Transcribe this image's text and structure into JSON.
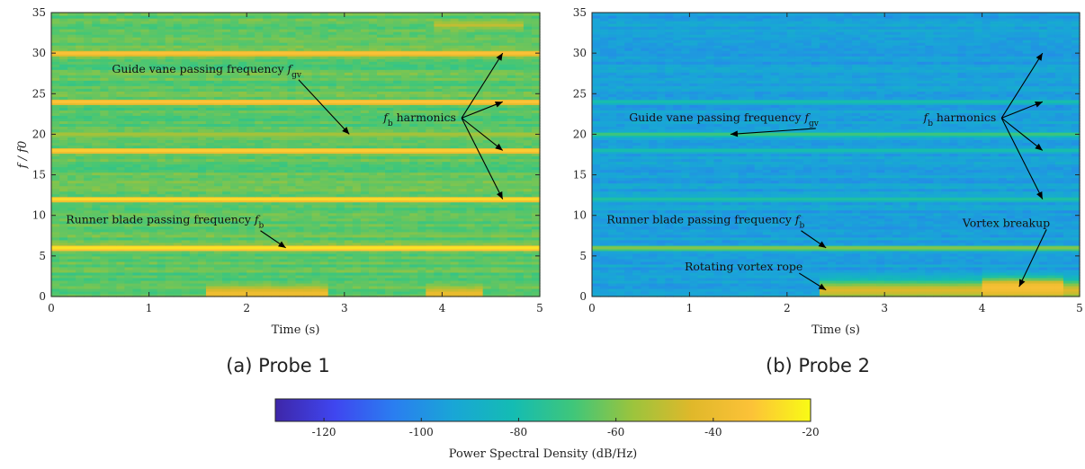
{
  "chart_data": [
    {
      "type": "heatmap",
      "id": "probe1",
      "caption": "(a) Probe 1",
      "xlabel": "Time (s)",
      "ylabel": "f / f0",
      "xlim": [
        0,
        5
      ],
      "ylim": [
        0,
        35
      ],
      "xticks": [
        0,
        1,
        2,
        3,
        4,
        5
      ],
      "yticks": [
        0,
        5,
        10,
        15,
        20,
        25,
        30,
        35
      ],
      "background_level_db": -65,
      "bands": [
        {
          "f": 0.4,
          "db": -38,
          "width": 0.8,
          "t_from": 1.6,
          "t_to": 2.8
        },
        {
          "f": 0.4,
          "db": -40,
          "width": 0.7,
          "t_from": 3.8,
          "t_to": 4.4
        },
        {
          "f": 6,
          "db": -25,
          "width": 0.35
        },
        {
          "f": 12,
          "db": -27,
          "width": 0.3
        },
        {
          "f": 18,
          "db": -30,
          "width": 0.3
        },
        {
          "f": 24,
          "db": -32,
          "width": 0.3
        },
        {
          "f": 30,
          "db": -33,
          "width": 0.3
        },
        {
          "f": 20,
          "db": -55,
          "width": 0.2
        },
        {
          "f": 33.5,
          "db": -50,
          "width": 0.4,
          "t_from": 3.9,
          "t_to": 4.8
        }
      ],
      "annotations": [
        {
          "text": "Guide vane passing frequency",
          "sym": "f",
          "sub": "gv",
          "x": 0.62,
          "y": 27.6,
          "to": [
            [
              3.05,
              20
            ]
          ]
        },
        {
          "text": "harmonics",
          "sym": "f",
          "sub": "b",
          "prefix": true,
          "x": 3.4,
          "y": 21.6,
          "from": [
            4.2,
            22
          ],
          "to": [
            [
              4.62,
              30
            ],
            [
              4.62,
              24
            ],
            [
              4.62,
              18
            ],
            [
              4.62,
              12
            ]
          ]
        },
        {
          "text": "Runner blade passing frequency",
          "sym": "f",
          "sub": "b",
          "x": 0.15,
          "y": 9.0,
          "to": [
            [
              2.4,
              6
            ]
          ]
        }
      ]
    },
    {
      "type": "heatmap",
      "id": "probe2",
      "caption": "(b) Probe 2",
      "xlabel": "Time (s)",
      "ylabel": "",
      "xlim": [
        0,
        5
      ],
      "ylim": [
        0,
        35
      ],
      "xticks": [
        0,
        1,
        2,
        3,
        4,
        5
      ],
      "yticks": [
        0,
        5,
        10,
        15,
        20,
        25,
        30,
        35
      ],
      "background_level_db": -95,
      "bands": [
        {
          "f": 0.8,
          "db": -45,
          "width": 1.2,
          "t_from": 2.3,
          "t_to": 5.0
        },
        {
          "f": 1.2,
          "db": -35,
          "width": 1.0,
          "t_from": 4.0,
          "t_to": 4.8
        },
        {
          "f": 6,
          "db": -60,
          "width": 0.3
        },
        {
          "f": 12,
          "db": -78,
          "width": 0.2
        },
        {
          "f": 18,
          "db": -80,
          "width": 0.2
        },
        {
          "f": 20,
          "db": -70,
          "width": 0.2
        },
        {
          "f": 24,
          "db": -80,
          "width": 0.2
        }
      ],
      "annotations": [
        {
          "text": "Guide vane passing frequency",
          "sym": "f",
          "sub": "gv",
          "x": 0.38,
          "y": 21.6,
          "to": [
            [
              1.42,
              20
            ]
          ]
        },
        {
          "text": "harmonics",
          "sym": "f",
          "sub": "b",
          "prefix": true,
          "x": 3.4,
          "y": 21.6,
          "from": [
            4.2,
            22
          ],
          "to": [
            [
              4.62,
              30
            ],
            [
              4.62,
              24
            ],
            [
              4.62,
              18
            ],
            [
              4.62,
              12
            ]
          ]
        },
        {
          "text": "Runner blade passing frequency",
          "sym": "f",
          "sub": "b",
          "x": 0.15,
          "y": 9.0,
          "to": [
            [
              2.4,
              6
            ]
          ]
        },
        {
          "text": "Rotating vortex rope",
          "x": 0.95,
          "y": 3.2,
          "to": [
            [
              2.4,
              0.8
            ]
          ]
        },
        {
          "text": "Vortex breakup",
          "x": 3.8,
          "y": 8.6,
          "to": [
            [
              4.38,
              1.2
            ]
          ]
        }
      ]
    }
  ],
  "colorbar": {
    "label": "Power Spectral Density (dB/Hz)",
    "range": [
      -130,
      -20
    ],
    "ticks": [
      -120,
      -100,
      -80,
      -60,
      -40,
      -20
    ],
    "colors": [
      "#3e26a8",
      "#3f46f0",
      "#2a7ef0",
      "#19a6d6",
      "#14bcb3",
      "#3fc67a",
      "#9bc43d",
      "#e0b82a",
      "#fcc238",
      "#f9fb15"
    ]
  }
}
